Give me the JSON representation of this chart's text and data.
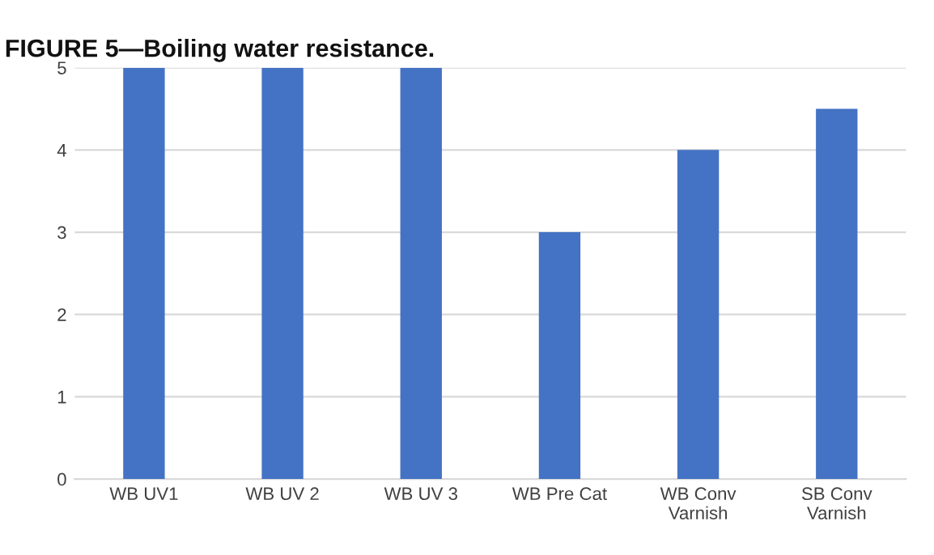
{
  "chart_data": {
    "type": "bar",
    "title": "FIGURE 5—Boiling water resistance.",
    "categories": [
      "WB UV1",
      "WB UV 2",
      "WB UV 3",
      "WB Pre Cat",
      "WB Conv\nVarnish",
      "SB Conv\nVarnish"
    ],
    "values": [
      5,
      5,
      5,
      3,
      4,
      4.5
    ],
    "color": "#4472c4",
    "ylim": [
      0,
      5
    ],
    "yticks": [
      0,
      1,
      2,
      3,
      4,
      5
    ],
    "grid": "y"
  }
}
